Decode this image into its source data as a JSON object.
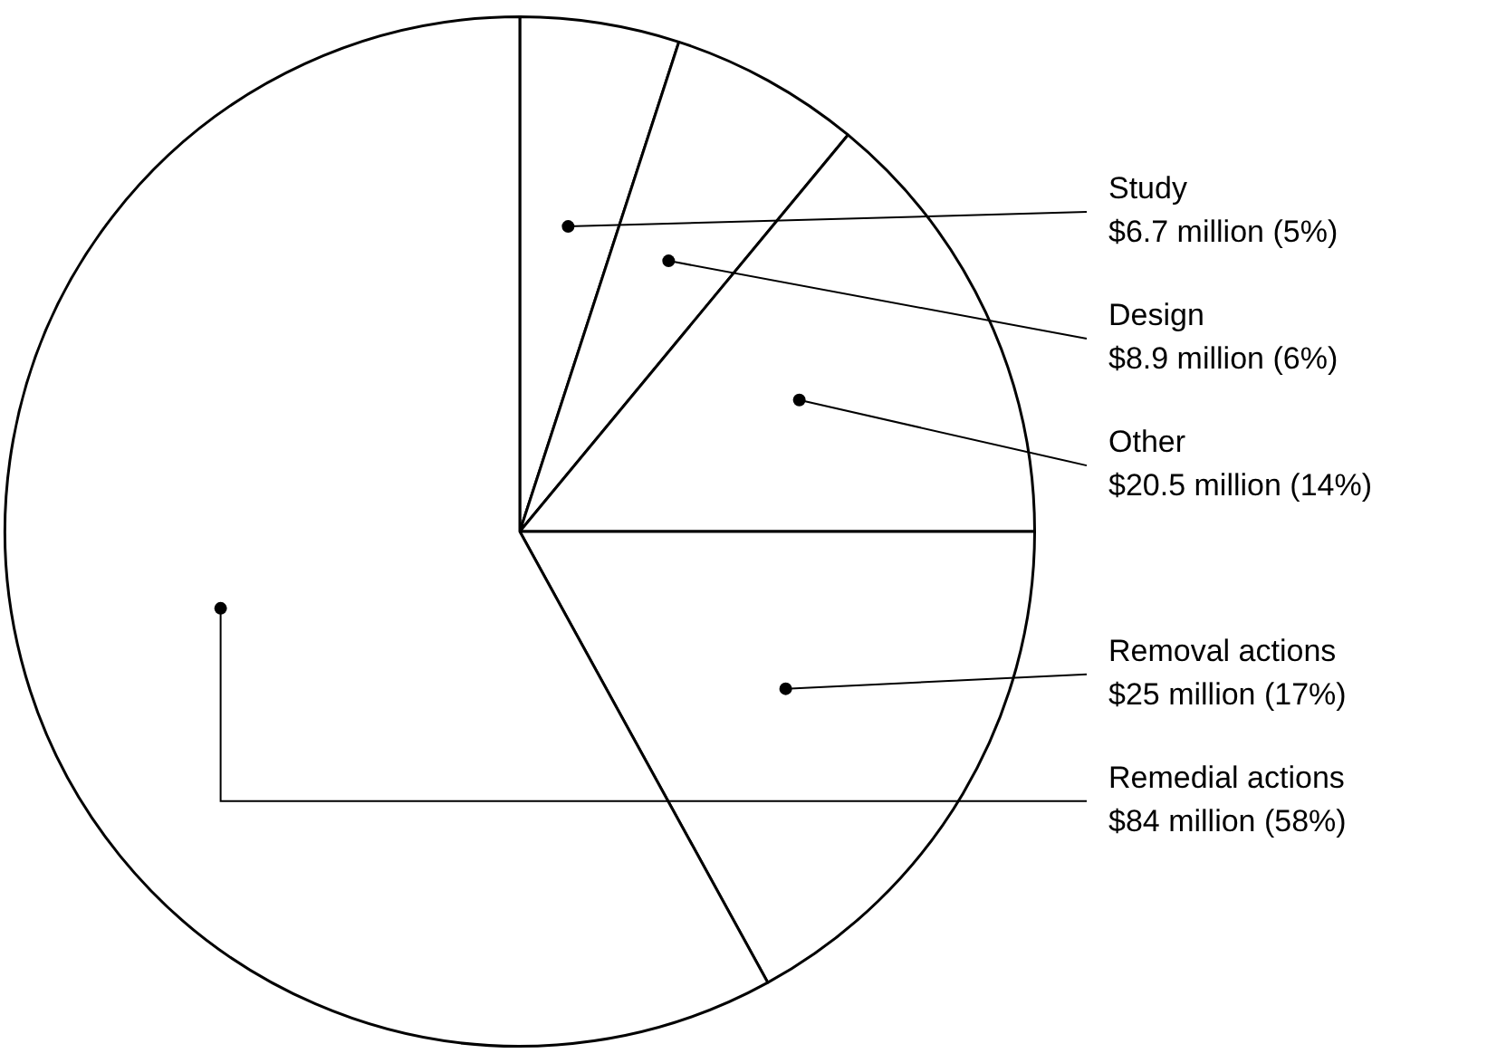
{
  "chart_data": {
    "type": "pie",
    "categories": [
      "Study",
      "Design",
      "Other",
      "Removal actions",
      "Remedial actions"
    ],
    "values": [
      5,
      6,
      14,
      17,
      58
    ],
    "value_labels": [
      "$6.7 million (5%)",
      "$8.9 million (6%)",
      "$20.5 million (14%)",
      "$25 million (17%)",
      "$84 million (58%)"
    ],
    "colors": [
      "#ffffff",
      "#ffffff",
      "#ffffff",
      "#ffffff",
      "#ffffff"
    ],
    "legend": false
  }
}
